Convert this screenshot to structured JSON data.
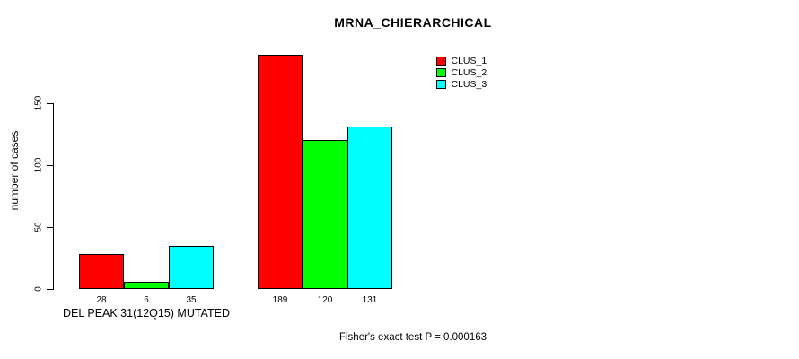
{
  "chart_data": {
    "type": "bar",
    "title": "MRNA_CHIERARCHICAL",
    "ylabel": "number of cases",
    "xlabel": "DEL PEAK 31(12Q15) MUTATED",
    "ylim": [
      0,
      150
    ],
    "yticks": [
      0,
      50,
      100,
      150
    ],
    "grid": false,
    "legend_position": "top-right",
    "bar_value_labels_shown": true,
    "series": [
      {
        "name": "CLUS_1",
        "color": "#ff0000",
        "values": [
          28,
          189
        ]
      },
      {
        "name": "CLUS_2",
        "color": "#00ff00",
        "values": [
          6,
          120
        ]
      },
      {
        "name": "CLUS_3",
        "color": "#00ffff",
        "values": [
          35,
          131
        ]
      }
    ],
    "annotations": [
      "Fisher's exact test P = 0.000163"
    ]
  }
}
